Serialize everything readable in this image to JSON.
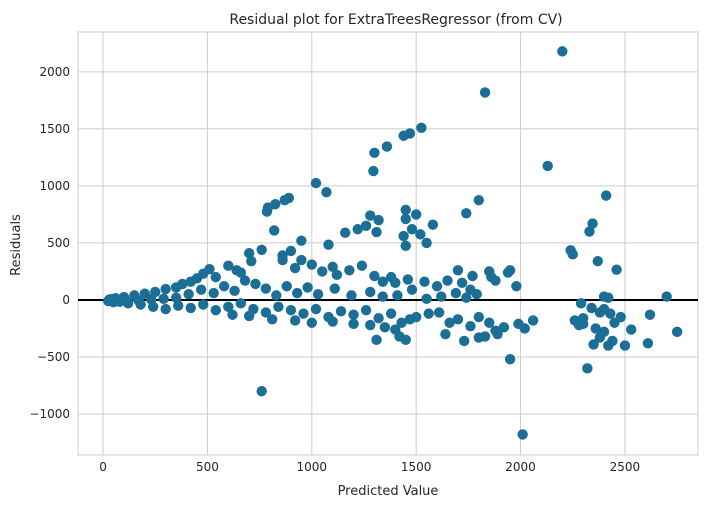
{
  "chart_data": {
    "type": "scatter",
    "title": "Residual plot for ExtraTreesRegressor (from CV)",
    "xlabel": "Predicted Value",
    "ylabel": "Residuals",
    "xlim": [
      -120,
      2850
    ],
    "ylim": [
      -1360,
      2350
    ],
    "xticks": [
      0,
      500,
      1000,
      1500,
      2000,
      2500
    ],
    "xtick_labels": [
      "0",
      "500",
      "1000",
      "1500",
      "2000",
      "2500"
    ],
    "yticks": [
      -1000,
      -500,
      0,
      500,
      1000,
      1500,
      2000
    ],
    "ytick_labels": [
      "−1000",
      "−500",
      "0",
      "500",
      "1000",
      "1500",
      "2000"
    ],
    "grid": true,
    "reference_line_y": 0,
    "marker_color": "#1b6f96",
    "reference_line_color": "#000000",
    "grid_color": "#cccccc",
    "points": [
      [
        2200,
        2180
      ],
      [
        1830,
        1820
      ],
      [
        1525,
        1510
      ],
      [
        1470,
        1460
      ],
      [
        1440,
        1440
      ],
      [
        1360,
        1345
      ],
      [
        1300,
        1290
      ],
      [
        1295,
        1130
      ],
      [
        2130,
        1175
      ],
      [
        1020,
        1025
      ],
      [
        1070,
        945
      ],
      [
        2410,
        915
      ],
      [
        890,
        895
      ],
      [
        870,
        875
      ],
      [
        825,
        840
      ],
      [
        790,
        810
      ],
      [
        785,
        775
      ],
      [
        1800,
        875
      ],
      [
        1740,
        760
      ],
      [
        1450,
        790
      ],
      [
        1500,
        750
      ],
      [
        1450,
        710
      ],
      [
        1280,
        740
      ],
      [
        1320,
        700
      ],
      [
        1310,
        595
      ],
      [
        1260,
        650
      ],
      [
        1220,
        620
      ],
      [
        1160,
        590
      ],
      [
        1580,
        660
      ],
      [
        1480,
        620
      ],
      [
        1440,
        560
      ],
      [
        1520,
        575
      ],
      [
        1550,
        500
      ],
      [
        1450,
        475
      ],
      [
        2330,
        600
      ],
      [
        2345,
        670
      ],
      [
        2240,
        435
      ],
      [
        2250,
        400
      ],
      [
        2370,
        340
      ],
      [
        2460,
        265
      ],
      [
        1080,
        485
      ],
      [
        950,
        520
      ],
      [
        820,
        610
      ],
      [
        700,
        410
      ],
      [
        710,
        340
      ],
      [
        760,
        440
      ],
      [
        860,
        390
      ],
      [
        900,
        430
      ],
      [
        860,
        350
      ],
      [
        920,
        280
      ],
      [
        950,
        350
      ],
      [
        1000,
        310
      ],
      [
        1050,
        250
      ],
      [
        1100,
        290
      ],
      [
        1120,
        220
      ],
      [
        1180,
        260
      ],
      [
        1240,
        300
      ],
      [
        1300,
        210
      ],
      [
        1340,
        160
      ],
      [
        1380,
        200
      ],
      [
        1400,
        150
      ],
      [
        1460,
        180
      ],
      [
        1540,
        160
      ],
      [
        1600,
        120
      ],
      [
        1650,
        170
      ],
      [
        1700,
        260
      ],
      [
        1720,
        150
      ],
      [
        1760,
        90
      ],
      [
        1770,
        210
      ],
      [
        1850,
        250
      ],
      [
        1860,
        200
      ],
      [
        1880,
        170
      ],
      [
        1940,
        240
      ],
      [
        1950,
        260
      ],
      [
        1980,
        120
      ],
      [
        600,
        300
      ],
      [
        640,
        260
      ],
      [
        660,
        240
      ],
      [
        540,
        200
      ],
      [
        510,
        270
      ],
      [
        480,
        230
      ],
      [
        450,
        190
      ],
      [
        420,
        160
      ],
      [
        380,
        140
      ],
      [
        350,
        110
      ],
      [
        300,
        95
      ],
      [
        250,
        70
      ],
      [
        200,
        55
      ],
      [
        150,
        40
      ],
      [
        100,
        25
      ],
      [
        60,
        15
      ],
      [
        40,
        8
      ],
      [
        30,
        3
      ],
      [
        25,
        -10
      ],
      [
        50,
        -20
      ],
      [
        80,
        -15
      ],
      [
        120,
        -30
      ],
      [
        180,
        -40
      ],
      [
        240,
        -60
      ],
      [
        300,
        -80
      ],
      [
        360,
        -50
      ],
      [
        420,
        -70
      ],
      [
        480,
        -40
      ],
      [
        540,
        -90
      ],
      [
        600,
        -60
      ],
      [
        660,
        -30
      ],
      [
        720,
        -80
      ],
      [
        780,
        -110
      ],
      [
        840,
        -60
      ],
      [
        900,
        -90
      ],
      [
        960,
        -120
      ],
      [
        1020,
        -80
      ],
      [
        1080,
        -150
      ],
      [
        1140,
        -100
      ],
      [
        1200,
        -130
      ],
      [
        1260,
        -90
      ],
      [
        1320,
        -160
      ],
      [
        1380,
        -120
      ],
      [
        1430,
        -200
      ],
      [
        1470,
        -170
      ],
      [
        1500,
        -150
      ],
      [
        1560,
        -120
      ],
      [
        1610,
        -110
      ],
      [
        1660,
        -200
      ],
      [
        1700,
        -170
      ],
      [
        1760,
        -230
      ],
      [
        1800,
        -150
      ],
      [
        1830,
        -320
      ],
      [
        1850,
        -200
      ],
      [
        1880,
        -270
      ],
      [
        1920,
        -240
      ],
      [
        1950,
        -520
      ],
      [
        1990,
        -210
      ],
      [
        2020,
        -250
      ],
      [
        2060,
        -180
      ],
      [
        2010,
        -1180
      ],
      [
        760,
        -800
      ],
      [
        2300,
        -210
      ],
      [
        2320,
        -600
      ],
      [
        2350,
        -390
      ],
      [
        2380,
        -330
      ],
      [
        2400,
        -280
      ],
      [
        2420,
        -400
      ],
      [
        2440,
        -360
      ],
      [
        2500,
        -400
      ],
      [
        2530,
        -260
      ],
      [
        2610,
        -380
      ],
      [
        2620,
        -130
      ],
      [
        2700,
        30
      ],
      [
        2750,
        -280
      ],
      [
        2260,
        -180
      ],
      [
        2280,
        -220
      ],
      [
        2360,
        -250
      ],
      [
        2400,
        -80
      ],
      [
        2430,
        -120
      ],
      [
        2450,
        -200
      ],
      [
        2480,
        -150
      ],
      [
        2400,
        30
      ],
      [
        2420,
        20
      ],
      [
        1310,
        -350
      ],
      [
        1420,
        -320
      ],
      [
        1450,
        -350
      ],
      [
        1640,
        -300
      ],
      [
        1730,
        -360
      ],
      [
        1800,
        -330
      ],
      [
        1890,
        -300
      ],
      [
        2290,
        -30
      ],
      [
        2340,
        -70
      ],
      [
        2380,
        -110
      ],
      [
        2300,
        -160
      ],
      [
        1620,
        30
      ],
      [
        1690,
        60
      ],
      [
        1740,
        20
      ],
      [
        1790,
        50
      ],
      [
        1550,
        10
      ],
      [
        1480,
        90
      ],
      [
        1410,
        40
      ],
      [
        1340,
        30
      ],
      [
        1280,
        70
      ],
      [
        1190,
        40
      ],
      [
        1110,
        100
      ],
      [
        1030,
        50
      ],
      [
        980,
        110
      ],
      [
        930,
        60
      ],
      [
        880,
        120
      ],
      [
        830,
        40
      ],
      [
        780,
        100
      ],
      [
        730,
        140
      ],
      [
        680,
        170
      ],
      [
        630,
        80
      ],
      [
        580,
        120
      ],
      [
        530,
        60
      ],
      [
        470,
        90
      ],
      [
        410,
        50
      ],
      [
        350,
        20
      ],
      [
        290,
        10
      ],
      [
        230,
        5
      ],
      [
        170,
        -5
      ],
      [
        110,
        -8
      ],
      [
        70,
        -3
      ],
      [
        620,
        -130
      ],
      [
        700,
        -140
      ],
      [
        810,
        -170
      ],
      [
        920,
        -180
      ],
      [
        1000,
        -200
      ],
      [
        1100,
        -190
      ],
      [
        1200,
        -210
      ],
      [
        1280,
        -220
      ],
      [
        1350,
        -240
      ],
      [
        1400,
        -260
      ]
    ]
  }
}
